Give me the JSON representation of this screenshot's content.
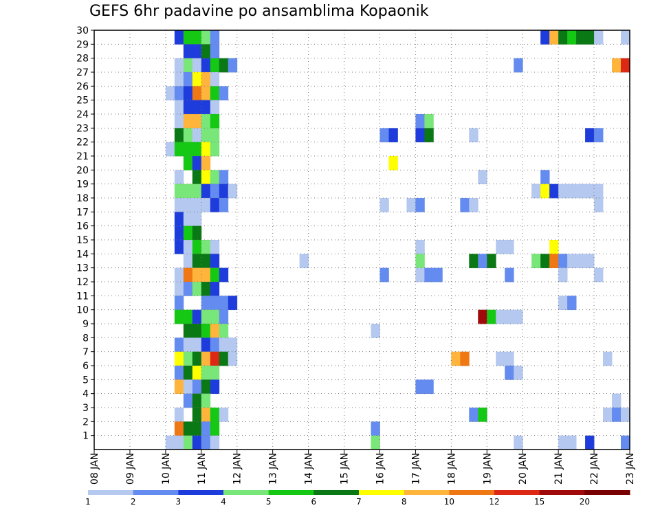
{
  "chart_data": {
    "type": "heatmap",
    "title": "GEFS 6hr padavine po ansamblima Kopaonik",
    "x_tick_labels": [
      "08 JAN",
      "09 JAN",
      "10 JAN",
      "11 JAN",
      "12 JAN",
      "13 JAN",
      "14 JAN",
      "15 JAN",
      "16 JAN",
      "17 JAN",
      "18 JAN",
      "19 JAN",
      "20 JAN",
      "21 JAN",
      "22 JAN",
      "23 JAN"
    ],
    "y_tick_labels": [
      "1",
      "2",
      "3",
      "4",
      "5",
      "6",
      "7",
      "8",
      "9",
      "10",
      "11",
      "12",
      "13",
      "14",
      "15",
      "16",
      "17",
      "18",
      "19",
      "20",
      "21",
      "22",
      "23",
      "24",
      "25",
      "26",
      "27",
      "28",
      "29",
      "30"
    ],
    "xlim": [
      "08 JAN 00z",
      "23 JAN 00z"
    ],
    "ylim": [
      0,
      30
    ],
    "time_step_hours": 6,
    "grid": true,
    "grid_style": "dotted",
    "legend_placement": "bottom",
    "colorbar": {
      "colors": [
        "#b4c8f0",
        "#648cf0",
        "#1e3cdc",
        "#78e678",
        "#14c814",
        "#0a7814",
        "#ffff00",
        "#ffb43c",
        "#f07814",
        "#dc2814",
        "#a00a0a",
        "#780000"
      ],
      "labels": [
        "1",
        "2",
        "3",
        "4",
        "5",
        "6",
        "7",
        "8",
        "10",
        "12",
        "15",
        "20"
      ],
      "bounds": [
        1,
        2,
        3,
        4,
        5,
        6,
        7,
        8,
        10,
        12,
        15,
        20
      ]
    },
    "members": [
      {
        "member": 30,
        "cells": [
          [
            9,
            2
          ],
          [
            10,
            4
          ],
          [
            11,
            4
          ],
          [
            12,
            3
          ],
          [
            13,
            1
          ],
          [
            50,
            2
          ],
          [
            51,
            7
          ],
          [
            52,
            5
          ],
          [
            53,
            4
          ],
          [
            54,
            5
          ],
          [
            55,
            5
          ],
          [
            56,
            0
          ],
          [
            59,
            0
          ]
        ]
      },
      {
        "member": 29,
        "cells": [
          [
            10,
            2
          ],
          [
            11,
            2
          ],
          [
            12,
            5
          ],
          [
            13,
            1
          ]
        ]
      },
      {
        "member": 28,
        "cells": [
          [
            9,
            0
          ],
          [
            10,
            3
          ],
          [
            11,
            0
          ],
          [
            12,
            2
          ],
          [
            13,
            4
          ],
          [
            14,
            5
          ],
          [
            15,
            1
          ],
          [
            47,
            1
          ],
          [
            58,
            7
          ],
          [
            59,
            9
          ]
        ]
      },
      {
        "member": 27,
        "cells": [
          [
            9,
            0
          ],
          [
            10,
            1
          ],
          [
            11,
            6
          ],
          [
            12,
            7
          ],
          [
            13,
            0
          ]
        ]
      },
      {
        "member": 26,
        "cells": [
          [
            8,
            0
          ],
          [
            9,
            1
          ],
          [
            10,
            2
          ],
          [
            11,
            8
          ],
          [
            12,
            7
          ],
          [
            13,
            4
          ],
          [
            14,
            1
          ]
        ]
      },
      {
        "member": 25,
        "cells": [
          [
            9,
            0
          ],
          [
            10,
            2
          ],
          [
            11,
            2
          ],
          [
            12,
            2
          ],
          [
            13,
            0
          ]
        ]
      },
      {
        "member": 24,
        "cells": [
          [
            9,
            0
          ],
          [
            10,
            7
          ],
          [
            11,
            7
          ],
          [
            12,
            3
          ],
          [
            13,
            4
          ],
          [
            36,
            1
          ],
          [
            37,
            3
          ]
        ]
      },
      {
        "member": 23,
        "cells": [
          [
            9,
            5
          ],
          [
            10,
            3
          ],
          [
            11,
            0
          ],
          [
            12,
            3
          ],
          [
            13,
            3
          ],
          [
            32,
            1
          ],
          [
            33,
            2
          ],
          [
            36,
            2
          ],
          [
            37,
            5
          ],
          [
            42,
            0
          ],
          [
            55,
            2
          ],
          [
            56,
            1
          ]
        ]
      },
      {
        "member": 22,
        "cells": [
          [
            8,
            0
          ],
          [
            9,
            4
          ],
          [
            10,
            4
          ],
          [
            11,
            4
          ],
          [
            12,
            6
          ],
          [
            13,
            3
          ]
        ]
      },
      {
        "member": 21,
        "cells": [
          [
            10,
            4
          ],
          [
            11,
            2
          ],
          [
            12,
            7
          ],
          [
            33,
            6
          ]
        ]
      },
      {
        "member": 20,
        "cells": [
          [
            9,
            0
          ],
          [
            11,
            5
          ],
          [
            12,
            6
          ],
          [
            13,
            3
          ],
          [
            14,
            1
          ],
          [
            43,
            0
          ],
          [
            50,
            1
          ]
        ]
      },
      {
        "member": 19,
        "cells": [
          [
            9,
            3
          ],
          [
            10,
            3
          ],
          [
            11,
            3
          ],
          [
            12,
            2
          ],
          [
            13,
            1
          ],
          [
            14,
            2
          ],
          [
            15,
            0
          ],
          [
            49,
            0
          ],
          [
            50,
            6
          ],
          [
            51,
            2
          ],
          [
            52,
            0
          ],
          [
            53,
            0
          ],
          [
            54,
            0
          ],
          [
            55,
            0
          ],
          [
            56,
            0
          ]
        ]
      },
      {
        "member": 18,
        "cells": [
          [
            9,
            0
          ],
          [
            10,
            0
          ],
          [
            11,
            0
          ],
          [
            12,
            0
          ],
          [
            13,
            2
          ],
          [
            14,
            1
          ],
          [
            32,
            0
          ],
          [
            35,
            0
          ],
          [
            36,
            1
          ],
          [
            41,
            1
          ],
          [
            42,
            0
          ],
          [
            56,
            0
          ]
        ]
      },
      {
        "member": 17,
        "cells": [
          [
            9,
            2
          ],
          [
            10,
            0
          ],
          [
            11,
            0
          ]
        ]
      },
      {
        "member": 16,
        "cells": [
          [
            9,
            2
          ],
          [
            10,
            4
          ],
          [
            11,
            5
          ]
        ]
      },
      {
        "member": 15,
        "cells": [
          [
            9,
            2
          ],
          [
            10,
            0
          ],
          [
            11,
            4
          ],
          [
            12,
            3
          ],
          [
            13,
            0
          ],
          [
            36,
            0
          ],
          [
            45,
            0
          ],
          [
            46,
            0
          ],
          [
            51,
            6
          ]
        ]
      },
      {
        "member": 14,
        "cells": [
          [
            10,
            0
          ],
          [
            11,
            5
          ],
          [
            12,
            5
          ],
          [
            13,
            2
          ],
          [
            23,
            0
          ],
          [
            36,
            3
          ],
          [
            42,
            5
          ],
          [
            43,
            1
          ],
          [
            44,
            5
          ],
          [
            49,
            3
          ],
          [
            50,
            5
          ],
          [
            51,
            8
          ],
          [
            52,
            1
          ],
          [
            53,
            0
          ],
          [
            54,
            0
          ],
          [
            55,
            0
          ]
        ]
      },
      {
        "member": 13,
        "cells": [
          [
            9,
            0
          ],
          [
            10,
            8
          ],
          [
            11,
            7
          ],
          [
            12,
            7
          ],
          [
            13,
            4
          ],
          [
            14,
            2
          ],
          [
            32,
            1
          ],
          [
            36,
            0
          ],
          [
            37,
            1
          ],
          [
            38,
            1
          ],
          [
            46,
            1
          ],
          [
            52,
            0
          ],
          [
            56,
            0
          ]
        ]
      },
      {
        "member": 12,
        "cells": [
          [
            9,
            0
          ],
          [
            10,
            1
          ],
          [
            11,
            3
          ],
          [
            12,
            5
          ],
          [
            13,
            2
          ]
        ]
      },
      {
        "member": 11,
        "cells": [
          [
            9,
            1
          ],
          [
            12,
            1
          ],
          [
            13,
            1
          ],
          [
            14,
            1
          ],
          [
            15,
            2
          ],
          [
            52,
            0
          ],
          [
            53,
            1
          ]
        ]
      },
      {
        "member": 10,
        "cells": [
          [
            9,
            4
          ],
          [
            10,
            4
          ],
          [
            11,
            2
          ],
          [
            12,
            3
          ],
          [
            13,
            3
          ],
          [
            14,
            1
          ],
          [
            43,
            10
          ],
          [
            44,
            4
          ],
          [
            45,
            0
          ],
          [
            46,
            0
          ],
          [
            47,
            0
          ]
        ]
      },
      {
        "member": 9,
        "cells": [
          [
            10,
            5
          ],
          [
            11,
            5
          ],
          [
            12,
            4
          ],
          [
            13,
            7
          ],
          [
            14,
            3
          ],
          [
            31,
            0
          ]
        ]
      },
      {
        "member": 8,
        "cells": [
          [
            9,
            1
          ],
          [
            10,
            0
          ],
          [
            11,
            0
          ],
          [
            12,
            2
          ],
          [
            13,
            1
          ],
          [
            14,
            0
          ],
          [
            15,
            0
          ]
        ]
      },
      {
        "member": 7,
        "cells": [
          [
            9,
            6
          ],
          [
            10,
            3
          ],
          [
            11,
            5
          ],
          [
            12,
            7
          ],
          [
            13,
            9
          ],
          [
            14,
            5
          ],
          [
            15,
            0
          ],
          [
            40,
            7
          ],
          [
            41,
            8
          ],
          [
            45,
            0
          ],
          [
            46,
            0
          ],
          [
            57,
            0
          ]
        ]
      },
      {
        "member": 6,
        "cells": [
          [
            9,
            1
          ],
          [
            10,
            5
          ],
          [
            11,
            6
          ],
          [
            12,
            3
          ],
          [
            13,
            3
          ],
          [
            46,
            1
          ],
          [
            47,
            0
          ]
        ]
      },
      {
        "member": 5,
        "cells": [
          [
            9,
            7
          ],
          [
            10,
            0
          ],
          [
            11,
            1
          ],
          [
            12,
            5
          ],
          [
            13,
            2
          ],
          [
            36,
            1
          ],
          [
            37,
            1
          ]
        ]
      },
      {
        "member": 4,
        "cells": [
          [
            10,
            1
          ],
          [
            11,
            5
          ],
          [
            12,
            3
          ],
          [
            58,
            0
          ]
        ]
      },
      {
        "member": 3,
        "cells": [
          [
            9,
            0
          ],
          [
            11,
            5
          ],
          [
            12,
            7
          ],
          [
            13,
            4
          ],
          [
            14,
            0
          ],
          [
            42,
            1
          ],
          [
            43,
            4
          ],
          [
            57,
            0
          ],
          [
            58,
            1
          ],
          [
            59,
            0
          ]
        ]
      },
      {
        "member": 2,
        "cells": [
          [
            9,
            8
          ],
          [
            10,
            5
          ],
          [
            11,
            5
          ],
          [
            12,
            1
          ],
          [
            13,
            4
          ],
          [
            31,
            1
          ]
        ]
      },
      {
        "member": 1,
        "cells": [
          [
            8,
            0
          ],
          [
            9,
            0
          ],
          [
            10,
            3
          ],
          [
            11,
            2
          ],
          [
            12,
            1
          ],
          [
            13,
            0
          ],
          [
            31,
            3
          ],
          [
            47,
            0
          ],
          [
            52,
            0
          ],
          [
            53,
            0
          ],
          [
            55,
            2
          ],
          [
            59,
            1
          ]
        ]
      }
    ]
  }
}
